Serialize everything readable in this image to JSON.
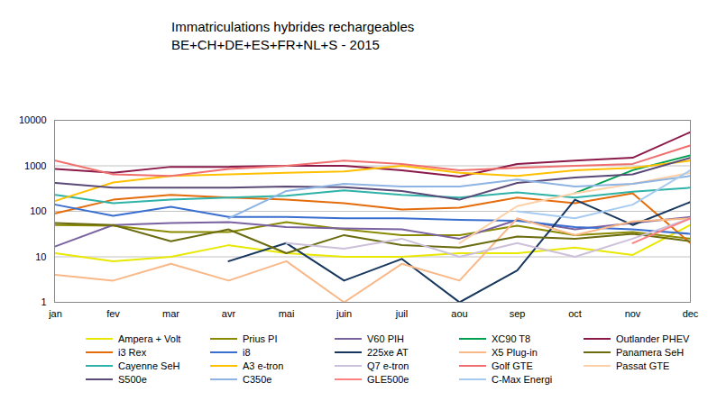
{
  "chart_data": {
    "type": "line",
    "title": "Immatriculations hybrides rechargeables",
    "subtitle": "BE+CH+DE+ES+FR+NL+S - 2015",
    "categories": [
      "jan",
      "fev",
      "mar",
      "avr",
      "mai",
      "juin",
      "juil",
      "aou",
      "sep",
      "oct",
      "nov",
      "dec"
    ],
    "log": "y",
    "grid": true,
    "legend": "bottom",
    "ylim": [
      1,
      10000
    ],
    "yticks": [
      1,
      10,
      100,
      1000,
      10000
    ],
    "series": [
      {
        "name": "Ampera + Volt",
        "color": "#e8e800",
        "values": [
          12,
          8,
          10,
          18,
          12,
          10,
          10,
          12,
          12,
          16,
          11,
          50
        ]
      },
      {
        "name": "Prius PI",
        "color": "#8a8a00",
        "values": [
          50,
          48,
          35,
          35,
          58,
          40,
          30,
          30,
          48,
          30,
          35,
          25
        ]
      },
      {
        "name": "V60 PIH",
        "color": "#7a62a0",
        "values": [
          17,
          50,
          55,
          58,
          45,
          42,
          40,
          25,
          65,
          40,
          55,
          75
        ]
      },
      {
        "name": "XC90 T8",
        "color": "#00a050",
        "values": [
          null,
          null,
          null,
          null,
          null,
          null,
          null,
          null,
          null,
          250,
          800,
          1700
        ]
      },
      {
        "name": "Outlander PHEV",
        "color": "#8b1a4b",
        "values": [
          850,
          700,
          950,
          950,
          1000,
          1000,
          800,
          580,
          1100,
          1300,
          1500,
          5500
        ]
      },
      {
        "name": "i3 Rex",
        "color": "#e46c0a",
        "values": [
          90,
          180,
          230,
          200,
          180,
          150,
          110,
          120,
          200,
          150,
          250,
          20
        ]
      },
      {
        "name": "i8",
        "color": "#3a6fd0",
        "values": [
          140,
          80,
          125,
          75,
          75,
          70,
          70,
          65,
          62,
          45,
          40,
          32
        ]
      },
      {
        "name": "225xe AT",
        "color": "#17375e",
        "values": [
          null,
          null,
          null,
          8,
          20,
          3,
          9,
          1,
          5,
          180,
          50,
          160
        ]
      },
      {
        "name": "X5 Plug-in",
        "color": "#f8b888",
        "values": [
          4,
          3,
          7,
          3,
          8,
          1,
          7,
          3,
          70,
          30,
          60,
          70
        ]
      },
      {
        "name": "Panamera SeH",
        "color": "#6b6b10",
        "values": [
          55,
          50,
          22,
          40,
          12,
          30,
          18,
          16,
          28,
          25,
          32,
          22
        ]
      },
      {
        "name": "Cayenne SeH",
        "color": "#2fb3a8",
        "values": [
          230,
          150,
          180,
          200,
          220,
          290,
          230,
          200,
          260,
          200,
          270,
          330
        ]
      },
      {
        "name": "A3 e-tron",
        "color": "#ffc000",
        "values": [
          170,
          430,
          600,
          650,
          700,
          750,
          1000,
          700,
          600,
          800,
          900,
          1300
        ]
      },
      {
        "name": "Q7 e-tron",
        "color": "#ccc0da",
        "values": [
          null,
          null,
          null,
          null,
          20,
          15,
          25,
          10,
          20,
          10,
          25,
          70
        ]
      },
      {
        "name": "Golf GTE",
        "color": "#f07070",
        "values": [
          1300,
          650,
          600,
          850,
          1000,
          1300,
          1100,
          800,
          900,
          1000,
          1100,
          2800
        ]
      },
      {
        "name": "Passat GTE",
        "color": "#fcd0a8",
        "values": [
          null,
          null,
          null,
          null,
          null,
          null,
          null,
          20,
          130,
          250,
          400,
          700
        ]
      },
      {
        "name": "S500e",
        "color": "#5a4a78",
        "values": [
          420,
          330,
          330,
          330,
          350,
          340,
          280,
          180,
          420,
          550,
          650,
          1500
        ]
      },
      {
        "name": "C350e",
        "color": "#8db4e2",
        "values": [
          null,
          null,
          null,
          70,
          280,
          400,
          350,
          350,
          500,
          350,
          400,
          600
        ]
      },
      {
        "name": "GLE500e",
        "color": "#ff8080",
        "values": [
          null,
          null,
          null,
          null,
          null,
          null,
          null,
          null,
          null,
          null,
          20,
          70
        ]
      },
      {
        "name": "C-Max Energi",
        "color": "#a6caf0",
        "values": [
          null,
          null,
          null,
          null,
          null,
          null,
          null,
          null,
          100,
          70,
          140,
          800
        ]
      }
    ]
  }
}
